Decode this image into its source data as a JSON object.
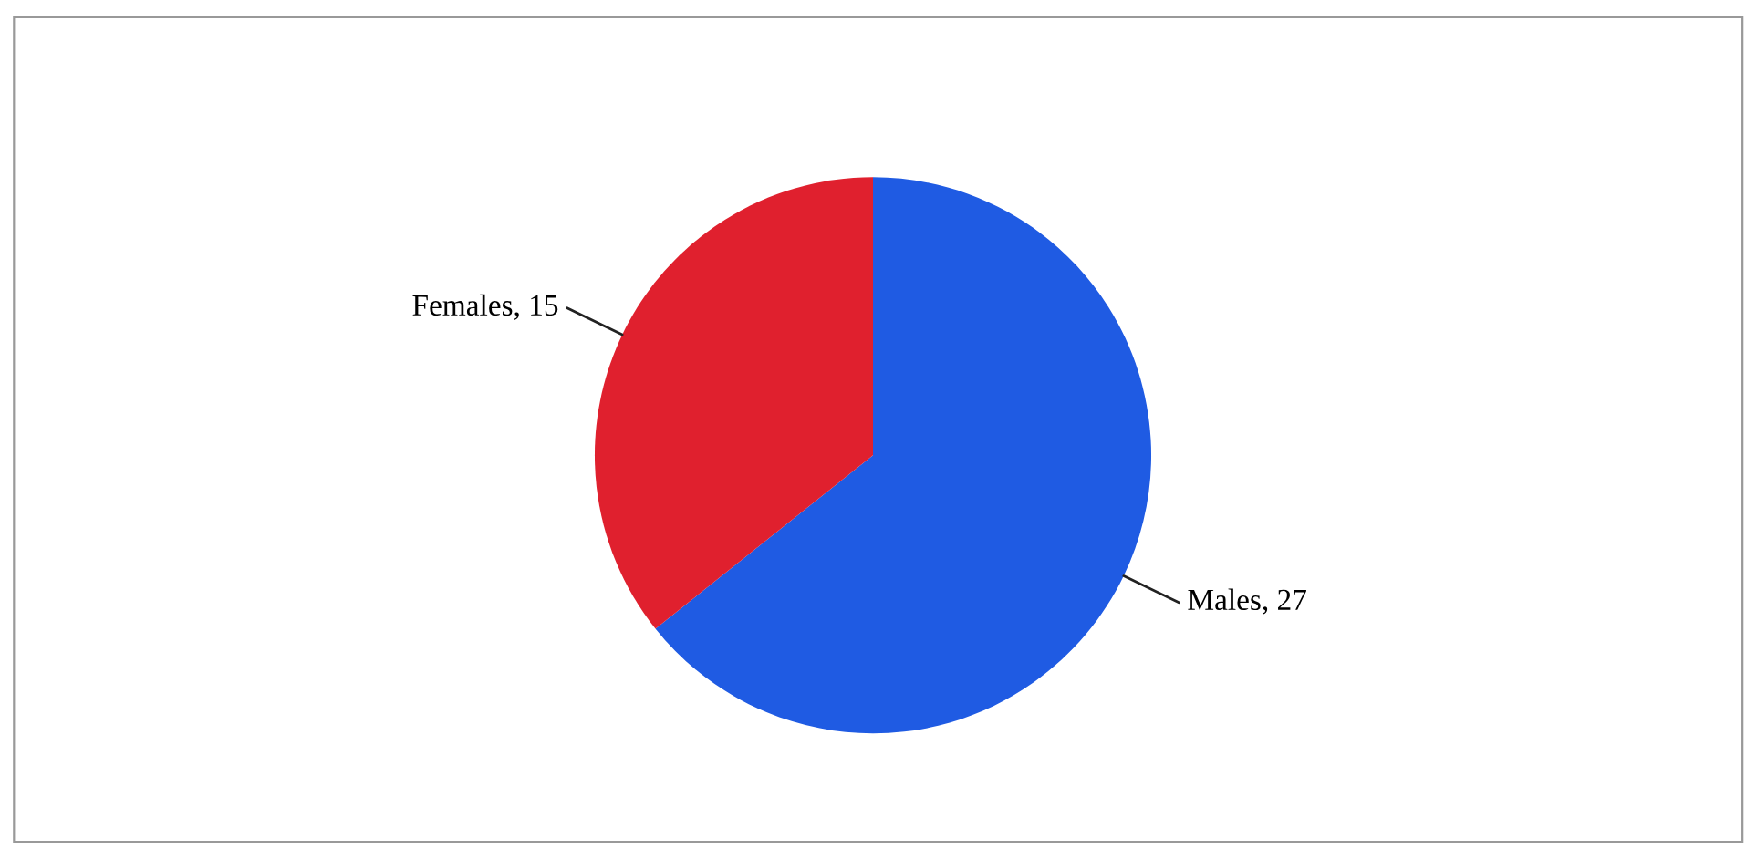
{
  "chart_data": {
    "type": "pie",
    "categories": [
      "Males",
      "Females"
    ],
    "values": [
      27,
      15
    ],
    "colors": [
      "#1f5be3",
      "#e0202e"
    ],
    "value_labels": [
      ", 27",
      ", 15"
    ],
    "legend": false
  }
}
